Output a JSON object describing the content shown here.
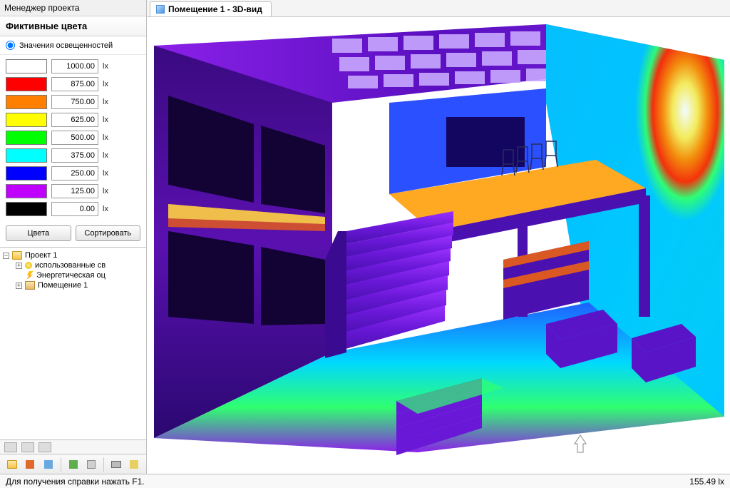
{
  "left_panel": {
    "title": "Менеджер проекта",
    "section_header": "Фиктивные цвета",
    "radio_label": "Значения освещенностей",
    "unit": "lx",
    "color_scale": [
      {
        "color": "#ffffff",
        "value": "1000.00"
      },
      {
        "color": "#ff0000",
        "value": "875.00"
      },
      {
        "color": "#ff8000",
        "value": "750.00"
      },
      {
        "color": "#ffff00",
        "value": "625.00"
      },
      {
        "color": "#00ff00",
        "value": "500.00"
      },
      {
        "color": "#00ffff",
        "value": "375.00"
      },
      {
        "color": "#0000ff",
        "value": "250.00"
      },
      {
        "color": "#c000ff",
        "value": "125.00"
      },
      {
        "color": "#000000",
        "value": "0.00"
      }
    ],
    "buttons": {
      "colors": "Цвета",
      "sort": "Сортировать"
    }
  },
  "tree": {
    "root": "Проект 1",
    "children": [
      {
        "icon": "bulb",
        "label": "использованные св",
        "expandable": true
      },
      {
        "icon": "flash",
        "label": "Энергетическая оц",
        "expandable": false
      },
      {
        "icon": "room",
        "label": "Помещение 1",
        "expandable": true
      }
    ]
  },
  "view_tab": {
    "label": "Помещение 1 - 3D-вид",
    "icon_color": "#4a90d9"
  },
  "status": {
    "help_text": "Для получения справки нажать F1.",
    "readout": "155.49 lx"
  },
  "render": {
    "type": "false-color-3d",
    "description": "Interior room false-color illuminance rendering",
    "background": "#ffffff",
    "gradient_stops": [
      "#000000",
      "#5a00b0",
      "#2300ff",
      "#00c8ff",
      "#00ff6a",
      "#e6ff00",
      "#ff8a00",
      "#ff1e00",
      "#ffffff"
    ]
  },
  "colors": {
    "panel_border": "#c0c0c0",
    "text": "#000000",
    "accent": "#4a90d9"
  }
}
